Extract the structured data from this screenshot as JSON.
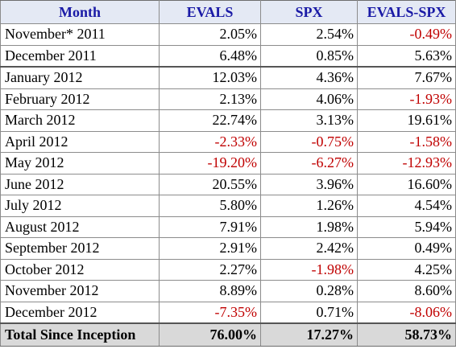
{
  "header": {
    "month": "Month",
    "evals": "EVALS",
    "spx": "SPX",
    "diff": "EVALS-SPX"
  },
  "rows": [
    {
      "month": "November* 2011",
      "evals": "2.05%",
      "spx": "2.54%",
      "diff": "-0.49%"
    },
    {
      "month": "December 2011",
      "evals": "6.48%",
      "spx": "0.85%",
      "diff": "5.63%"
    },
    {
      "month": "January 2012",
      "evals": "12.03%",
      "spx": "4.36%",
      "diff": "7.67%"
    },
    {
      "month": "February 2012",
      "evals": "2.13%",
      "spx": "4.06%",
      "diff": "-1.93%"
    },
    {
      "month": "March 2012",
      "evals": "22.74%",
      "spx": "3.13%",
      "diff": "19.61%"
    },
    {
      "month": "April 2012",
      "evals": "-2.33%",
      "spx": "-0.75%",
      "diff": "-1.58%"
    },
    {
      "month": "May 2012",
      "evals": "-19.20%",
      "spx": "-6.27%",
      "diff": "-12.93%"
    },
    {
      "month": "June 2012",
      "evals": "20.55%",
      "spx": "3.96%",
      "diff": "16.60%"
    },
    {
      "month": "July 2012",
      "evals": "5.80%",
      "spx": "1.26%",
      "diff": "4.54%"
    },
    {
      "month": "August 2012",
      "evals": "7.91%",
      "spx": "1.98%",
      "diff": "5.94%"
    },
    {
      "month": "September 2012",
      "evals": "2.91%",
      "spx": "2.42%",
      "diff": "0.49%"
    },
    {
      "month": "October 2012",
      "evals": "2.27%",
      "spx": "-1.98%",
      "diff": "4.25%"
    },
    {
      "month": "November 2012",
      "evals": "8.89%",
      "spx": "0.28%",
      "diff": "8.60%"
    },
    {
      "month": "December 2012",
      "evals": "-7.35%",
      "spx": "0.71%",
      "diff": "-8.06%"
    }
  ],
  "total": {
    "label": "Total Since Inception",
    "evals": "76.00%",
    "spx": "17.27%",
    "diff": "58.73%"
  },
  "colors": {
    "header_text": "#1a1aa6",
    "header_bg": "#e4e9f4",
    "negative": "#c00000",
    "total_bg": "#d9d9d9"
  }
}
